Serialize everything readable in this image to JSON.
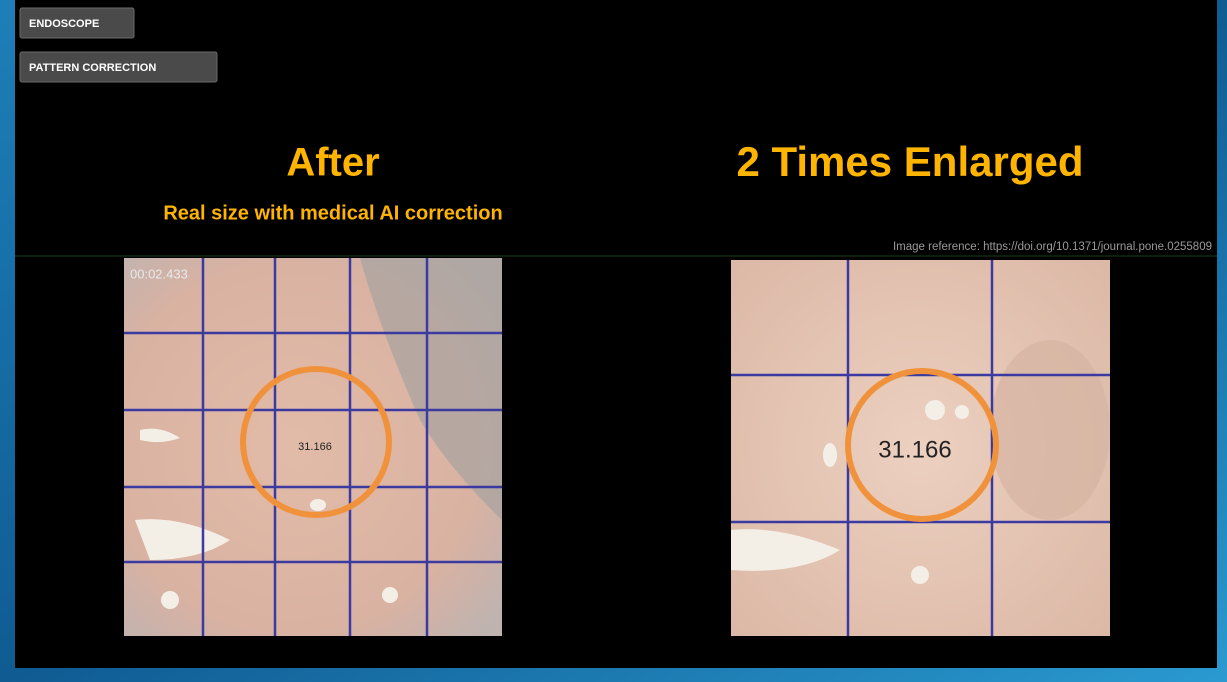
{
  "buttons": [
    "ENDOSCOPE",
    "PATTERN CORRECTION"
  ],
  "left_panel": {
    "title": "After",
    "subtitle": "Real size with medical AI correction",
    "timestamp": "00:02.433",
    "measurement": "31.166"
  },
  "right_panel": {
    "title": "2 Times Enlarged",
    "reference": "Image reference: https://doi.org/10.1371/journal.pone.0255809",
    "measurement": "31.166"
  }
}
